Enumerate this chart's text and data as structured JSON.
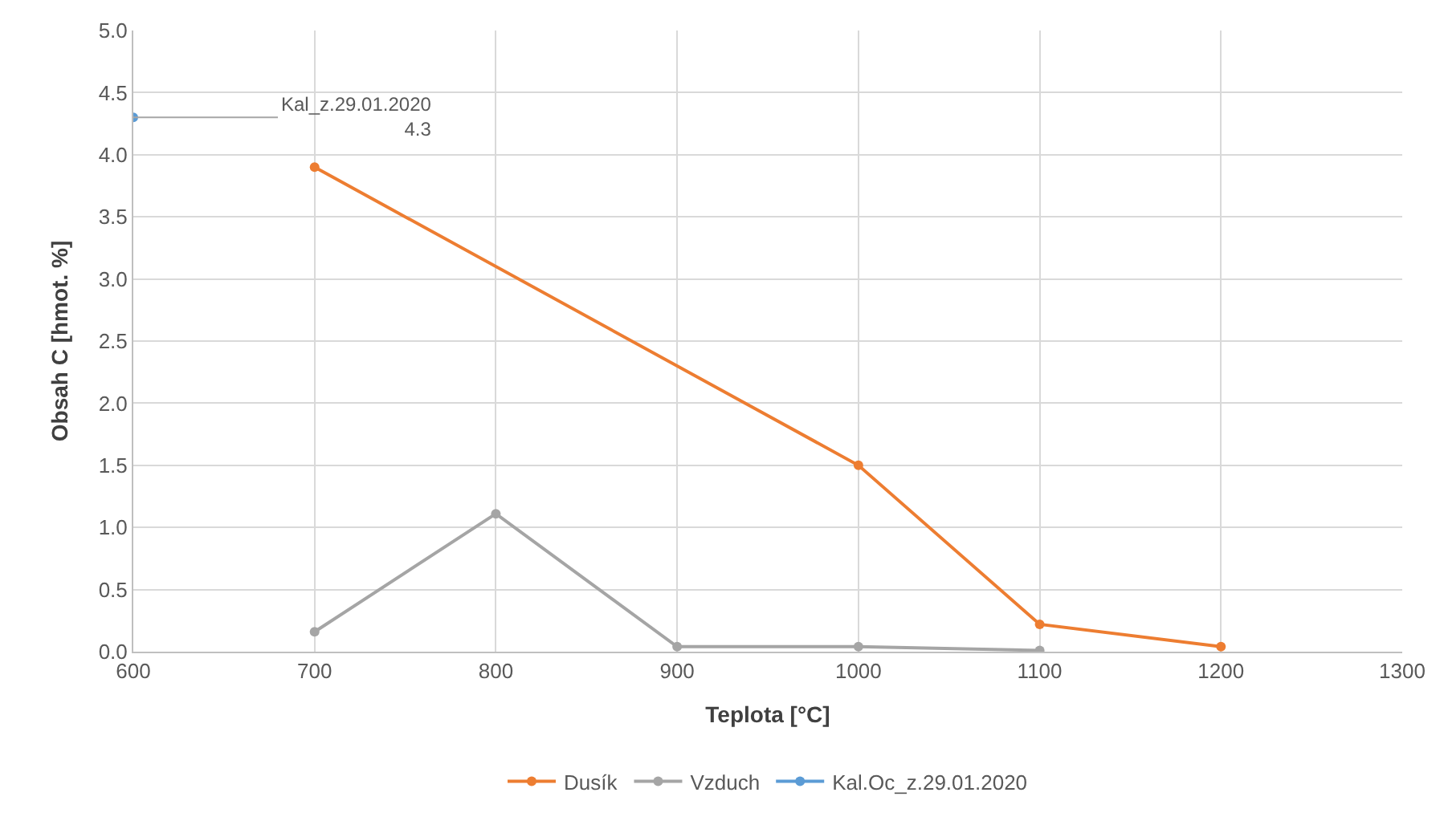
{
  "chart_data": {
    "type": "line",
    "xlabel": "Teplota [°C]",
    "ylabel": "Obsah C [hmot. %]",
    "xlim": [
      600,
      1300
    ],
    "xticks": [
      600,
      700,
      800,
      900,
      1000,
      1100,
      1200,
      1300
    ],
    "ylim": [
      0,
      5
    ],
    "yticks": [
      {
        "value": 0,
        "label": "0.0"
      },
      0.5,
      {
        "value": 1,
        "label": "1.0"
      },
      1.5,
      {
        "value": 2,
        "label": "2.0"
      },
      2.5,
      {
        "value": 3,
        "label": "3.0"
      },
      3.5,
      {
        "value": 4,
        "label": "4.0"
      },
      4.5,
      {
        "value": 5,
        "label": "5.0"
      }
    ],
    "grid": true,
    "legend": "bottom",
    "marker": "circle",
    "line_style": "solid",
    "series": [
      {
        "name": "Dusík",
        "color": "#ed7d31",
        "x": [
          700,
          1000,
          1100,
          1200
        ],
        "values": [
          3.9,
          1.5,
          0.22,
          0.04
        ]
      },
      {
        "name": "Vzduch",
        "color": "#a5a5a5",
        "x": [
          700,
          800,
          900,
          1000,
          1100
        ],
        "values": [
          0.16,
          1.11,
          0.04,
          0.04,
          0.01
        ]
      },
      {
        "name": "Kal.Oc_z.29.01.2020",
        "color": "#5b9bd5",
        "x": [
          600
        ],
        "values": [
          4.3
        ]
      }
    ],
    "annotations": [
      {
        "text": "Kal_z.29.01.2020\n4.3",
        "x": 600,
        "y": 4.3
      }
    ]
  }
}
